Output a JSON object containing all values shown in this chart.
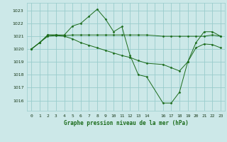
{
  "bg_color": "#cce8e8",
  "grid_color": "#99cccc",
  "line_color": "#1a6b1a",
  "title": "Graphe pression niveau de la mer (hPa)",
  "xlim": [
    -0.5,
    23.5
  ],
  "ylim": [
    1015.2,
    1023.6
  ],
  "yticks": [
    1016,
    1017,
    1018,
    1019,
    1020,
    1021,
    1022,
    1023
  ],
  "xtick_positions": [
    0,
    1,
    2,
    3,
    4,
    5,
    6,
    7,
    8,
    9,
    10,
    11,
    12,
    13,
    14,
    15,
    16,
    17,
    18,
    19,
    20,
    21,
    22,
    23
  ],
  "xtick_labels": [
    "0",
    "1",
    "2",
    "3",
    "4",
    "5",
    "6",
    "7",
    "8",
    "9",
    "10",
    "11",
    "12",
    "13",
    "14",
    "",
    "16",
    "17",
    "18",
    "19",
    "20",
    "21",
    "22",
    "23"
  ],
  "series": [
    {
      "x": [
        0,
        1,
        2,
        3,
        4,
        5,
        6,
        7,
        8,
        9,
        10,
        11,
        12,
        13,
        14,
        16,
        17,
        18,
        19,
        20,
        21,
        22,
        23
      ],
      "y": [
        1020.0,
        1020.5,
        1021.1,
        1021.1,
        1021.05,
        1021.1,
        1021.1,
        1021.1,
        1021.1,
        1021.1,
        1021.1,
        1021.1,
        1021.1,
        1021.1,
        1021.1,
        1021.0,
        1021.0,
        1021.0,
        1021.0,
        1021.0,
        1021.0,
        1021.1,
        1021.0
      ]
    },
    {
      "x": [
        0,
        1,
        2,
        3,
        4,
        5,
        6,
        7,
        8,
        9,
        10,
        11,
        12,
        13,
        14,
        16,
        17,
        18,
        19,
        20,
        21,
        22,
        23
      ],
      "y": [
        1020.0,
        1020.5,
        1021.1,
        1021.1,
        1021.1,
        1021.8,
        1022.0,
        1022.55,
        1023.1,
        1022.35,
        1021.35,
        1021.75,
        1019.5,
        1018.0,
        1017.85,
        1015.8,
        1015.8,
        1016.65,
        1019.0,
        1020.5,
        1021.35,
        1021.35,
        1021.0
      ]
    },
    {
      "x": [
        0,
        1,
        2,
        3,
        4,
        5,
        6,
        7,
        8,
        9,
        10,
        11,
        12,
        13,
        14,
        16,
        17,
        18,
        19,
        20,
        21,
        22,
        23
      ],
      "y": [
        1020.0,
        1020.5,
        1021.0,
        1021.05,
        1021.0,
        1020.8,
        1020.5,
        1020.3,
        1020.1,
        1019.9,
        1019.7,
        1019.5,
        1019.35,
        1019.1,
        1018.9,
        1018.8,
        1018.55,
        1018.3,
        1019.0,
        1020.1,
        1020.4,
        1020.35,
        1020.1
      ]
    }
  ]
}
